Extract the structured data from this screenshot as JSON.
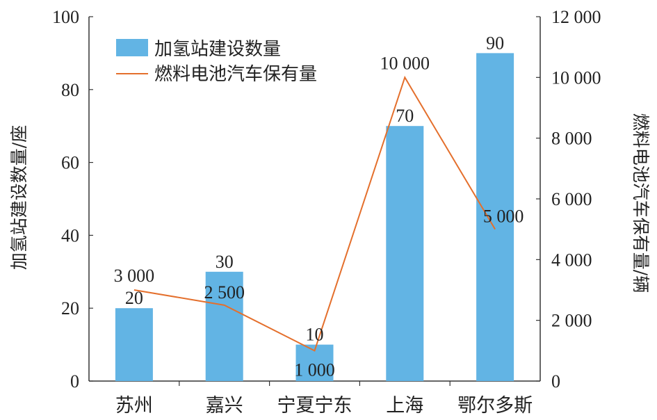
{
  "chart_data": {
    "type": "bar+line",
    "categories": [
      "苏州",
      "嘉兴",
      "宁夏宁东",
      "上海",
      "鄂尔多斯"
    ],
    "series": [
      {
        "name": "加氢站建设数量",
        "type": "bar",
        "axis": "left",
        "values": [
          20,
          30,
          10,
          70,
          90
        ],
        "labels": [
          "20",
          "30",
          "10",
          "70",
          "90"
        ],
        "color": "#62b4e4"
      },
      {
        "name": "燃料电池汽车保有量",
        "type": "line",
        "axis": "right",
        "values": [
          3000,
          2500,
          1000,
          10000,
          5000
        ],
        "labels": [
          "3 000",
          "2 500",
          "1 000",
          "10 000",
          "5 000"
        ],
        "color": "#e46f2c"
      }
    ],
    "y_left": {
      "label": "加氢站建设数量/座",
      "range": [
        0,
        100
      ],
      "ticks": [
        "0",
        "20",
        "40",
        "60",
        "80",
        "100"
      ]
    },
    "y_right": {
      "label": "燃料电池汽车保有量/辆",
      "range": [
        0,
        12000
      ],
      "ticks": [
        "0",
        "2 000",
        "4 000",
        "6 000",
        "8 000",
        "10 000",
        "12 000"
      ]
    },
    "legend_position": "top-left",
    "grid": false
  }
}
